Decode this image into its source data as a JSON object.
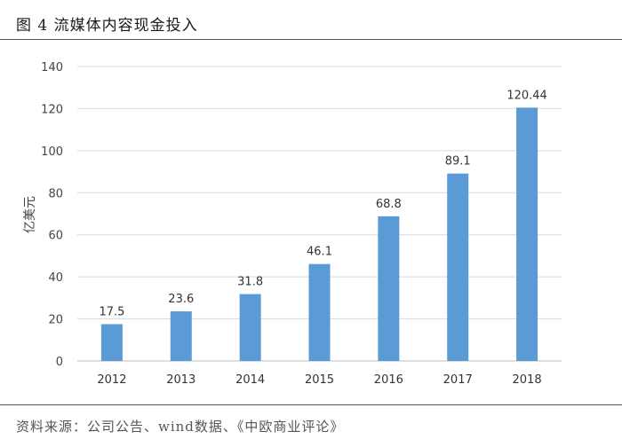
{
  "figure": {
    "title": "图 4  流媒体内容现金投入",
    "source": "资料来源：公司公告、wind数据、《中欧商业评论》"
  },
  "chart_data": {
    "type": "bar",
    "title": "",
    "xlabel": "",
    "ylabel": "亿美元",
    "categories": [
      "2012",
      "2013",
      "2014",
      "2015",
      "2016",
      "2017",
      "2018"
    ],
    "values": [
      17.5,
      23.6,
      31.8,
      46.1,
      68.8,
      89.1,
      120.44
    ],
    "value_labels": [
      "17.5",
      "23.6",
      "31.8",
      "46.1",
      "68.8",
      "89.1",
      "120.44"
    ],
    "ylim": [
      0,
      140
    ],
    "yticks": [
      0,
      20,
      40,
      60,
      80,
      100,
      120,
      140
    ],
    "grid": true,
    "legend": "none",
    "bar_color": "#5B9BD5"
  }
}
